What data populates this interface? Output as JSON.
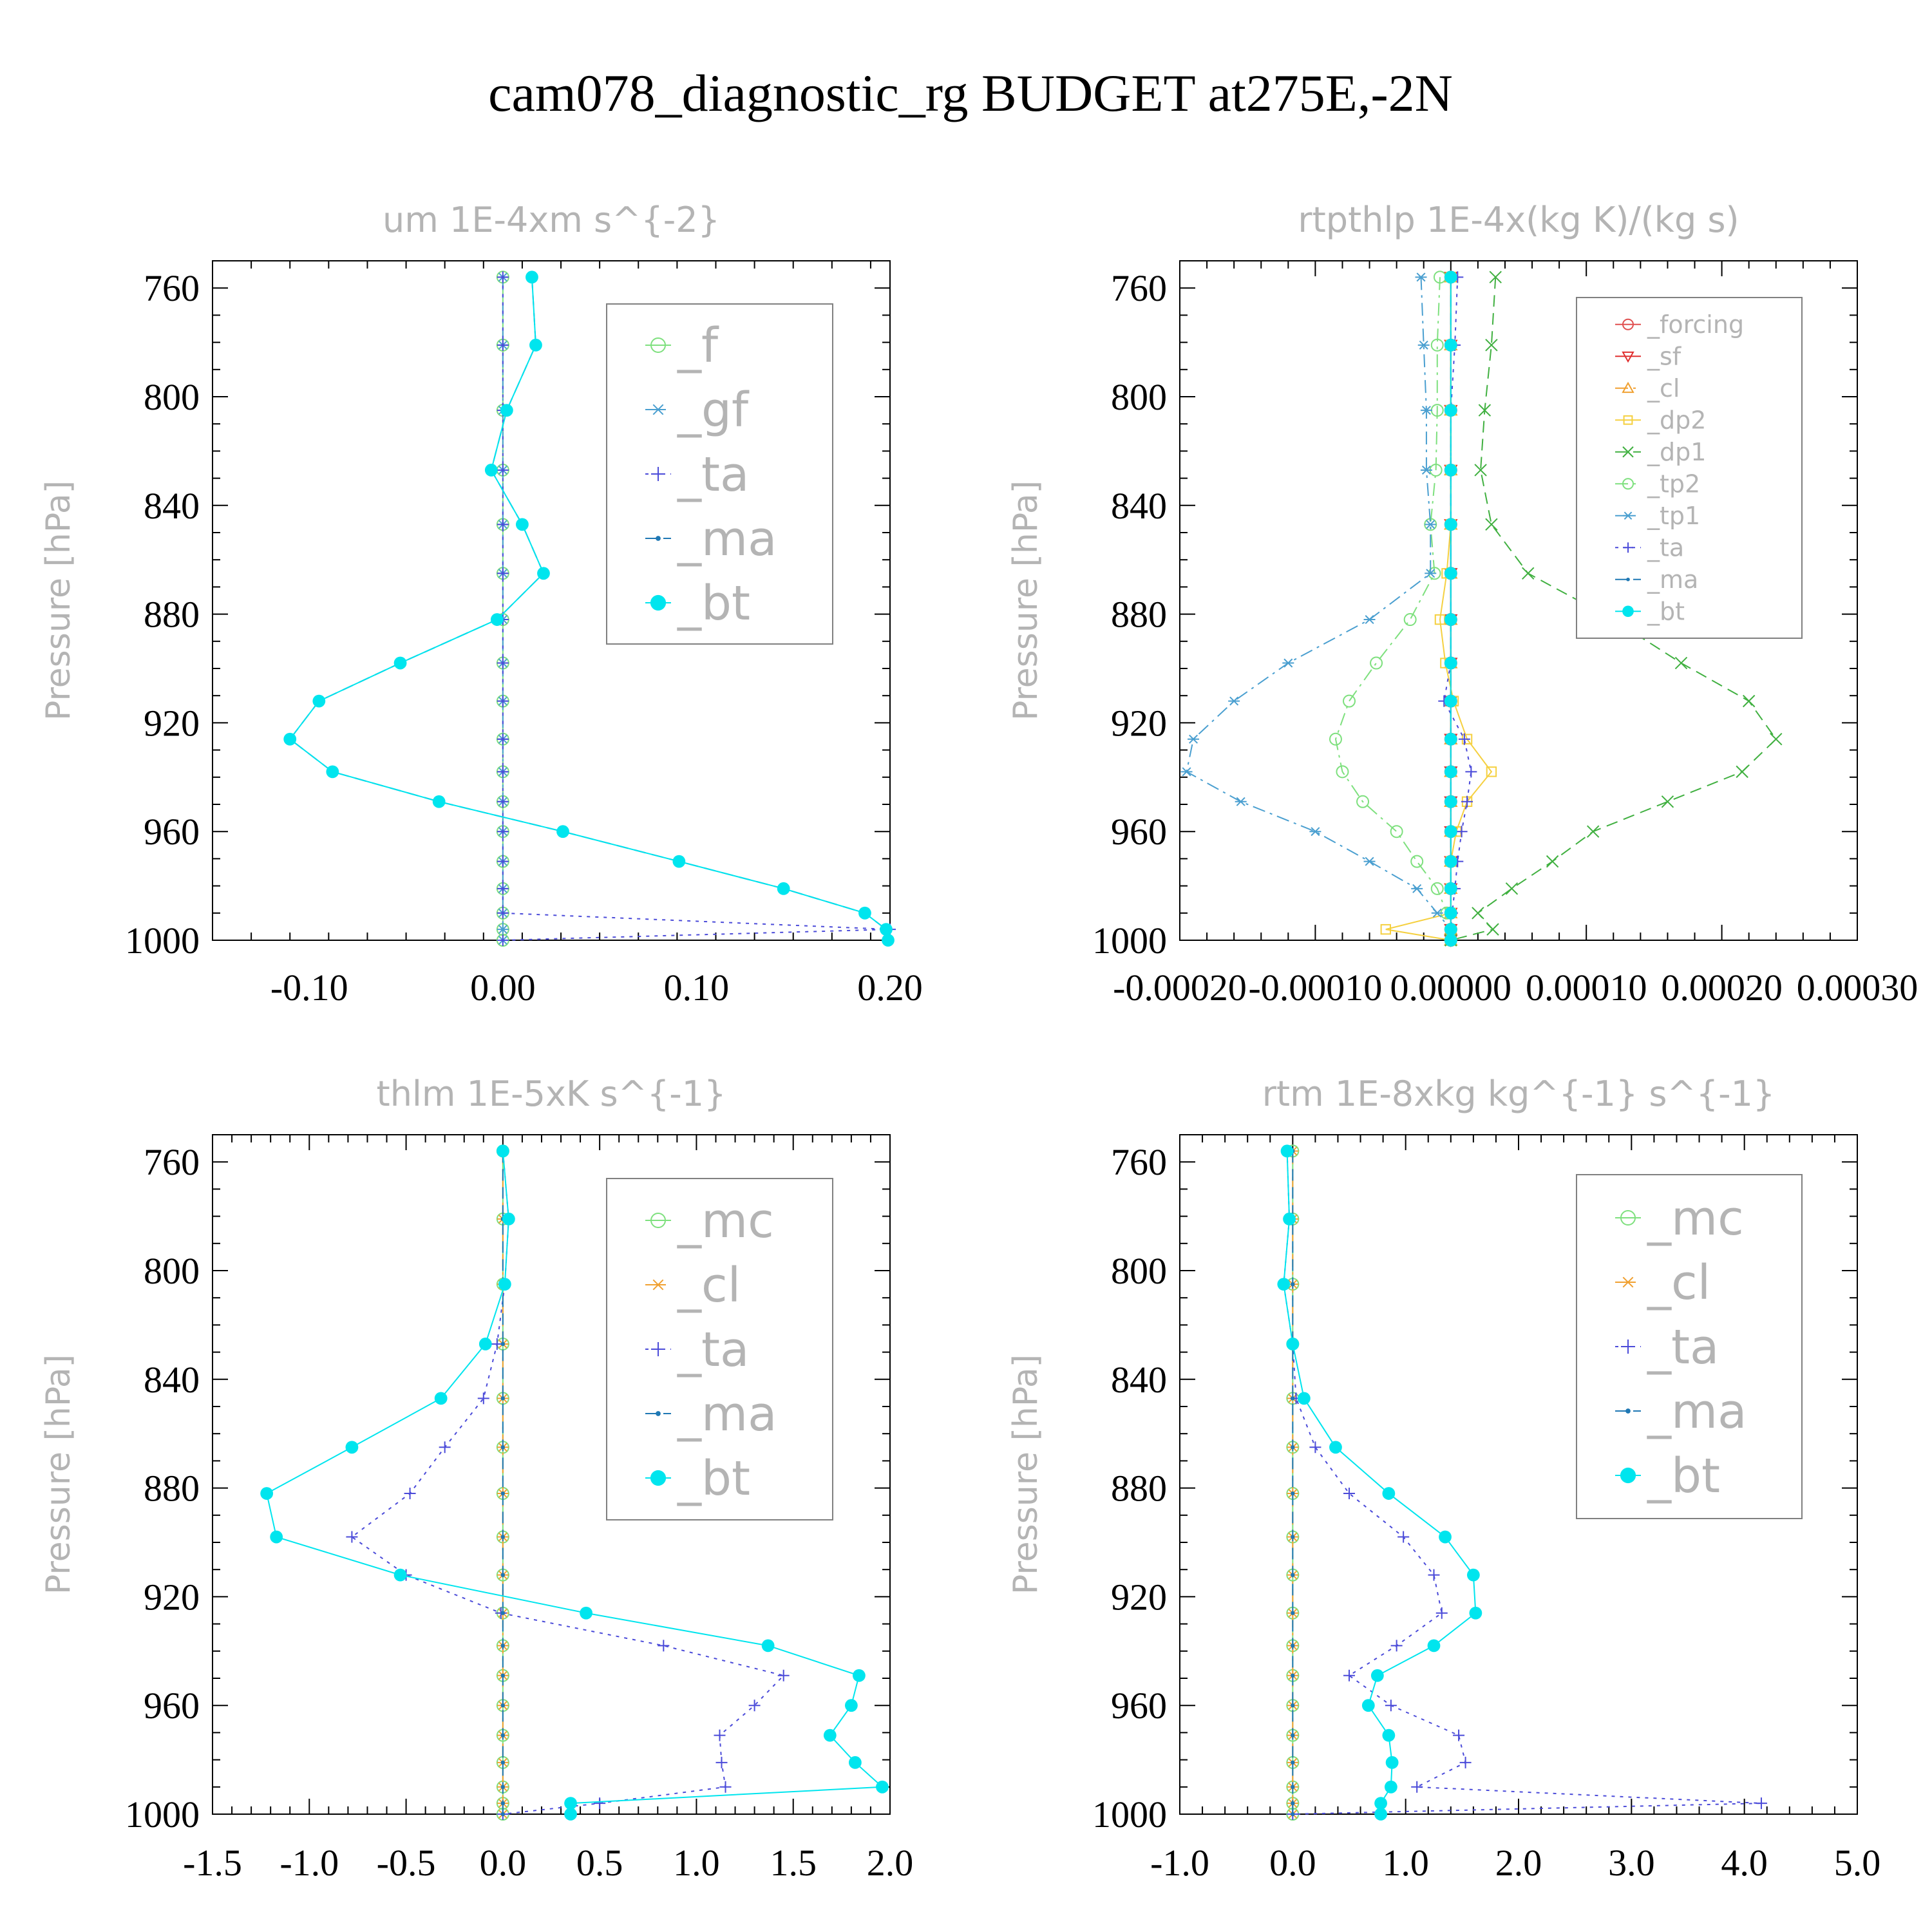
{
  "figure_title": "cam078_diagnostic_rg  BUDGET at275E,-2N",
  "colors": {
    "_f": "#7ee07e",
    "_gf": "#4a9fd0",
    "_ta": "#4b4bd9",
    "_ma": "#1f78b4",
    "_bt": "#00e5ee",
    "_forcing": "#e05050",
    "_sf": "#e03030",
    "_cl": "#f0a030",
    "_dp2": "#f5d040",
    "_dp1": "#40b040",
    "_tp2": "#7ee07e",
    "_tp1": "#4a9fd0",
    "_mc": "#7ee07e",
    "axis": "#000000",
    "title": "#b4b4b4"
  },
  "chart_data": [
    {
      "type": "line",
      "title": "um   1E-4xm s^{-2}",
      "ylabel": "Pressure [hPa]",
      "xlim": [
        -0.15,
        0.2
      ],
      "ylim": [
        1000,
        750
      ],
      "xticks": [
        -0.1,
        0.0,
        0.1,
        0.2
      ],
      "xtick_labels": [
        "-0.10",
        "0.00",
        "0.10",
        "0.20"
      ],
      "yticks": [
        760,
        800,
        840,
        880,
        920,
        960,
        1000
      ],
      "ytick_labels": [
        "760",
        "800",
        "840",
        "880",
        "920",
        "960",
        "1000"
      ],
      "y": [
        756,
        781,
        805,
        827,
        847,
        865,
        882,
        898,
        912,
        926,
        938,
        949,
        960,
        971,
        981,
        990,
        996,
        1000
      ],
      "series": [
        {
          "name": "_f",
          "marker": "circle-open",
          "dash": "solid",
          "values": [
            0,
            0,
            0,
            0,
            0,
            0,
            0,
            0,
            0,
            0,
            0,
            0,
            0,
            0,
            0,
            0,
            0,
            0
          ]
        },
        {
          "name": "_gf",
          "marker": "asterisk",
          "dash": "dashdot",
          "values": [
            0,
            0,
            0,
            0,
            0,
            0,
            0,
            0,
            0,
            0,
            0,
            0,
            0,
            0,
            0,
            0,
            0,
            0
          ]
        },
        {
          "name": "_ta",
          "marker": "plus",
          "dash": "dotted",
          "values": [
            0,
            0,
            0,
            0,
            0,
            0,
            0,
            0,
            0,
            0,
            0,
            0,
            0,
            0,
            0,
            0,
            0.2,
            0
          ]
        },
        {
          "name": "_ma",
          "marker": "dot",
          "dash": "dashed",
          "values": [
            0.015,
            0.017,
            0.002,
            -0.006,
            0.01,
            0.021,
            -0.003,
            -0.053,
            -0.095,
            -0.11,
            -0.088,
            -0.033,
            0.031,
            0.091,
            0.145,
            0.187,
            0.198,
            0.199
          ]
        },
        {
          "name": "_bt",
          "marker": "circle-filled",
          "dash": "solid",
          "values": [
            0.015,
            0.017,
            0.002,
            -0.006,
            0.01,
            0.021,
            -0.003,
            -0.053,
            -0.095,
            -0.11,
            -0.088,
            -0.033,
            0.031,
            0.091,
            0.145,
            0.187,
            0.198,
            0.199
          ]
        }
      ]
    },
    {
      "type": "line",
      "title": "rtpthlp   1E-4x(kg K)/(kg s)",
      "ylabel": "Pressure [hPa]",
      "xlim": [
        -0.0002,
        0.0003
      ],
      "ylim": [
        1000,
        750
      ],
      "xticks": [
        -0.0002,
        -0.0001,
        0.0,
        0.0001,
        0.0002,
        0.0003
      ],
      "xtick_labels": [
        "-0.00020",
        "-0.00010",
        "0.00000",
        "0.00010",
        "0.00020",
        "0.00030"
      ],
      "yticks": [
        760,
        800,
        840,
        880,
        920,
        960,
        1000
      ],
      "ytick_labels": [
        "760",
        "800",
        "840",
        "880",
        "920",
        "960",
        "1000"
      ],
      "y": [
        756,
        781,
        805,
        827,
        847,
        865,
        882,
        898,
        912,
        926,
        938,
        949,
        960,
        971,
        981,
        990,
        996,
        1000
      ],
      "series": [
        {
          "name": "_forcing",
          "marker": "circle-open",
          "dash": "solid",
          "values": [
            0,
            0,
            0,
            0,
            0,
            0,
            0,
            0,
            0,
            0,
            0,
            0,
            0,
            0,
            0,
            0,
            0,
            0
          ]
        },
        {
          "name": "_sf",
          "marker": "triangle-down",
          "dash": "solid",
          "values": [
            0,
            0,
            0,
            0,
            0,
            0,
            0,
            0,
            0,
            0,
            0,
            0,
            0,
            0,
            0,
            0,
            0,
            0
          ]
        },
        {
          "name": "_cl",
          "marker": "triangle-up",
          "dash": "dashdot",
          "values": [
            0,
            0,
            0,
            0,
            0,
            0,
            0,
            0,
            0,
            0,
            0,
            0,
            0,
            0,
            0,
            0,
            0,
            0
          ]
        },
        {
          "name": "_dp2",
          "marker": "square-open",
          "dash": "solid",
          "values": [
            0,
            0,
            0,
            0,
            0,
            -3e-06,
            -8e-06,
            -4e-06,
            2e-06,
            1.2e-05,
            3e-05,
            1.2e-05,
            4e-06,
            0,
            0,
            0,
            -4.8e-05,
            0
          ]
        },
        {
          "name": "_dp1",
          "marker": "cross",
          "dash": "dashed",
          "values": [
            3.3e-05,
            3e-05,
            2.5e-05,
            2.2e-05,
            3e-05,
            5.7e-05,
            0.00012,
            0.00017,
            0.00022,
            0.00024,
            0.000215,
            0.00016,
            0.000105,
            7.5e-05,
            4.5e-05,
            2e-05,
            3.1e-05,
            0
          ]
        },
        {
          "name": "_tp2",
          "marker": "circle-open",
          "dash": "dashdot",
          "values": [
            -8e-06,
            -1e-05,
            -1e-05,
            -1.1e-05,
            -1.5e-05,
            -1.2e-05,
            -3e-05,
            -5.5e-05,
            -7.5e-05,
            -8.5e-05,
            -8e-05,
            -6.5e-05,
            -4e-05,
            -2.5e-05,
            -1e-05,
            -3e-06,
            0,
            0
          ]
        },
        {
          "name": "_tp1",
          "marker": "asterisk",
          "dash": "dashdot",
          "values": [
            -2.2e-05,
            -2e-05,
            -1.8e-05,
            -1.8e-05,
            -1.5e-05,
            -1.5e-05,
            -6e-05,
            -0.00012,
            -0.00016,
            -0.00019,
            -0.000195,
            -0.000155,
            -0.0001,
            -6e-05,
            -2.5e-05,
            -1e-05,
            0,
            0
          ]
        },
        {
          "name": "_ta",
          "marker": "plus",
          "dash": "dotted",
          "values": [
            5e-06,
            3e-06,
            0,
            0,
            0,
            0,
            0,
            0,
            -5e-06,
            1e-05,
            1.5e-05,
            1.2e-05,
            8e-06,
            5e-06,
            3e-06,
            1e-06,
            0,
            0
          ]
        },
        {
          "name": "_ma",
          "marker": "dot",
          "dash": "dashed",
          "values": [
            0,
            0,
            0,
            0,
            0,
            0,
            0,
            0,
            0,
            0,
            0,
            0,
            0,
            0,
            0,
            0,
            0,
            0
          ]
        },
        {
          "name": "_bt",
          "marker": "circle-filled",
          "dash": "solid",
          "values": [
            0,
            0,
            0,
            0,
            0,
            0,
            0,
            0,
            0,
            0,
            0,
            0,
            0,
            0,
            0,
            0,
            0,
            0
          ]
        }
      ]
    },
    {
      "type": "line",
      "title": "thlm   1E-5xK s^{-1}",
      "ylabel": "Pressure [hPa]",
      "xlim": [
        -1.5,
        2.0
      ],
      "ylim": [
        1000,
        750
      ],
      "xticks": [
        -1.5,
        -1.0,
        -0.5,
        0.0,
        0.5,
        1.0,
        1.5,
        2.0
      ],
      "xtick_labels": [
        "-1.5",
        "-1.0",
        "-0.5",
        "0.0",
        "0.5",
        "1.0",
        "1.5",
        "2.0"
      ],
      "yticks": [
        760,
        800,
        840,
        880,
        920,
        960,
        1000
      ],
      "ytick_labels": [
        "760",
        "800",
        "840",
        "880",
        "920",
        "960",
        "1000"
      ],
      "y": [
        756,
        781,
        805,
        827,
        847,
        865,
        882,
        898,
        912,
        926,
        938,
        949,
        960,
        971,
        981,
        990,
        996,
        1000
      ],
      "series": [
        {
          "name": "_mc",
          "marker": "circle-open",
          "dash": "solid",
          "values": [
            0,
            0,
            0,
            0,
            0,
            0,
            0,
            0,
            0,
            0,
            0,
            0,
            0,
            0,
            0,
            0,
            0,
            0
          ]
        },
        {
          "name": "_cl",
          "marker": "asterisk",
          "dash": "dashdot",
          "values": [
            0,
            0,
            0,
            0,
            0,
            0,
            0,
            0,
            0,
            0,
            0,
            0,
            0,
            0,
            0,
            0,
            0,
            0
          ]
        },
        {
          "name": "_ta",
          "marker": "plus",
          "dash": "dotted",
          "values": [
            0,
            0.03,
            0.01,
            -0.03,
            -0.1,
            -0.3,
            -0.48,
            -0.78,
            -0.5,
            -0.01,
            0.83,
            1.45,
            1.3,
            1.12,
            1.13,
            1.15,
            0.5,
            0
          ]
        },
        {
          "name": "_ma",
          "marker": "dot",
          "dash": "dashed",
          "values": [
            0,
            0,
            0,
            0,
            0,
            0,
            0,
            0,
            0,
            0,
            0,
            0,
            0,
            0,
            0,
            0,
            0,
            0
          ]
        },
        {
          "name": "_bt",
          "marker": "circle-filled",
          "dash": "solid",
          "values": [
            0,
            0.03,
            0.01,
            -0.09,
            -0.32,
            -0.78,
            -1.22,
            -1.17,
            -0.53,
            0.43,
            1.37,
            1.84,
            1.8,
            1.69,
            1.82,
            1.96,
            0.35,
            0.35
          ]
        }
      ]
    },
    {
      "type": "line",
      "title": "rtm   1E-8xkg kg^{-1} s^{-1}",
      "ylabel": "Pressure [hPa]",
      "xlim": [
        -1.0,
        5.0
      ],
      "ylim": [
        1000,
        750
      ],
      "xticks": [
        -1.0,
        0.0,
        1.0,
        2.0,
        3.0,
        4.0,
        5.0
      ],
      "xtick_labels": [
        "-1.0",
        "0.0",
        "1.0",
        "2.0",
        "3.0",
        "4.0",
        "5.0"
      ],
      "yticks": [
        760,
        800,
        840,
        880,
        920,
        960,
        1000
      ],
      "ytick_labels": [
        "760",
        "800",
        "840",
        "880",
        "920",
        "960",
        "1000"
      ],
      "y": [
        756,
        781,
        805,
        827,
        847,
        865,
        882,
        898,
        912,
        926,
        938,
        949,
        960,
        971,
        981,
        990,
        996,
        1000
      ],
      "series": [
        {
          "name": "_mc",
          "marker": "circle-open",
          "dash": "solid",
          "values": [
            0,
            0,
            0,
            0,
            0,
            0,
            0,
            0,
            0,
            0,
            0,
            0,
            0,
            0,
            0,
            0,
            0,
            0
          ]
        },
        {
          "name": "_cl",
          "marker": "asterisk",
          "dash": "dashdot",
          "values": [
            0,
            0,
            0,
            0,
            0,
            0,
            0,
            0,
            0,
            0,
            0,
            0,
            0,
            0,
            0,
            0,
            0,
            0
          ]
        },
        {
          "name": "_ta",
          "marker": "plus",
          "dash": "dotted",
          "values": [
            -0.05,
            -0.03,
            -0.08,
            0.0,
            0.03,
            0.2,
            0.5,
            0.98,
            1.25,
            1.32,
            0.92,
            0.5,
            0.87,
            1.47,
            1.53,
            1.1,
            4.15,
            0
          ]
        },
        {
          "name": "_ma",
          "marker": "dot",
          "dash": "dashed",
          "values": [
            0,
            0,
            0,
            0,
            0,
            0,
            0,
            0,
            0,
            0,
            0,
            0,
            0,
            0,
            0,
            0,
            0,
            0
          ]
        },
        {
          "name": "_bt",
          "marker": "circle-filled",
          "dash": "solid",
          "values": [
            -0.05,
            -0.03,
            -0.08,
            0.0,
            0.1,
            0.38,
            0.85,
            1.35,
            1.6,
            1.62,
            1.25,
            0.75,
            0.67,
            0.85,
            0.88,
            0.87,
            0.78,
            0.78
          ]
        }
      ]
    }
  ]
}
